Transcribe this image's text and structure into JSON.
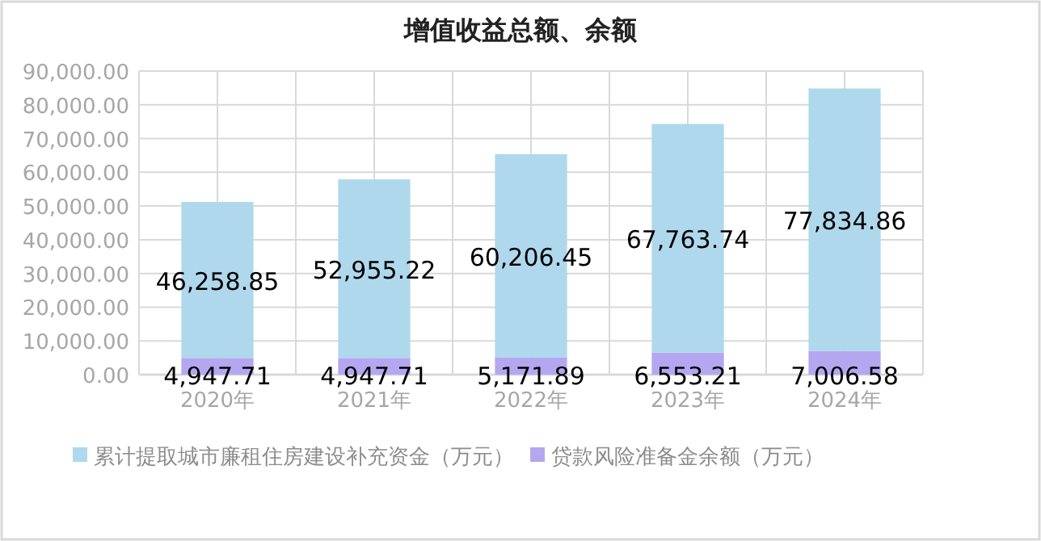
{
  "chart_data": {
    "type": "bar",
    "title": "增值收益总额、余额",
    "stacked": true,
    "categories": [
      "2020年",
      "2021年",
      "2022年",
      "2023年",
      "2024年"
    ],
    "series": [
      {
        "name": "贷款风险准备金余额（万元）",
        "color": "#b4a7f0",
        "values": [
          4947.71,
          4947.71,
          5171.89,
          6553.21,
          7006.58
        ],
        "value_labels": [
          "4,947.71",
          "4,947.71",
          "5,171.89",
          "6,553.21",
          "7,006.58"
        ]
      },
      {
        "name": "累计提取城市廉租住房建设补充资金（万元）",
        "color": "#afd8ec",
        "values": [
          46258.85,
          52955.22,
          60206.45,
          67763.74,
          77834.86
        ],
        "value_labels": [
          "46,258.85",
          "52,955.22",
          "60,206.45",
          "67,763.74",
          "77,834.86"
        ]
      }
    ],
    "ylim": [
      0,
      90000
    ],
    "yticks": [
      {
        "value": 0,
        "label": "0.00"
      },
      {
        "value": 10000,
        "label": "10,000.00"
      },
      {
        "value": 20000,
        "label": "20,000.00"
      },
      {
        "value": 30000,
        "label": "30,000.00"
      },
      {
        "value": 40000,
        "label": "40,000.00"
      },
      {
        "value": 50000,
        "label": "50,000.00"
      },
      {
        "value": 60000,
        "label": "60,000.00"
      },
      {
        "value": 70000,
        "label": "70,000.00"
      },
      {
        "value": 80000,
        "label": "80,000.00"
      },
      {
        "value": 90000,
        "label": "90,000.00"
      }
    ],
    "grid": true,
    "legend": "bottom"
  }
}
